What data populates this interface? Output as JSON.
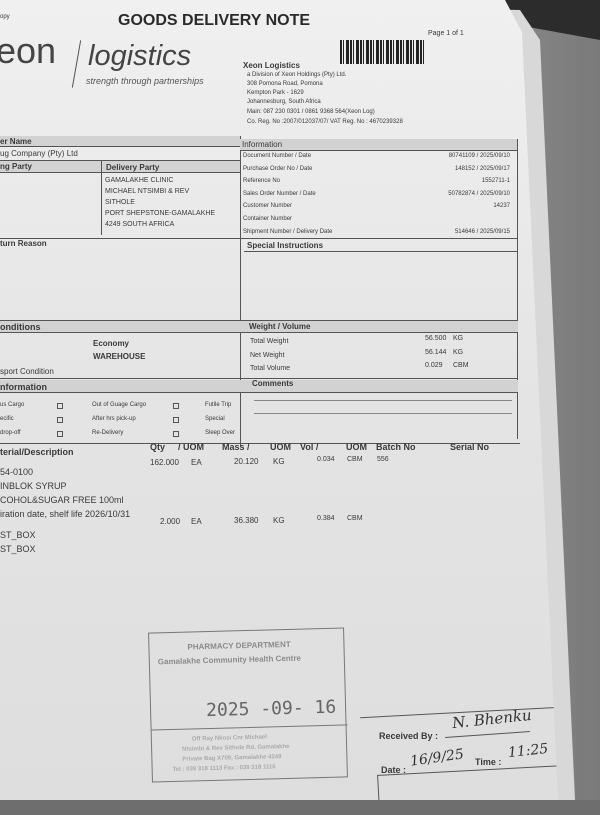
{
  "header": {
    "copy_label": "opy",
    "title": "GOODS DELIVERY NOTE",
    "page": "Page 1 of 1"
  },
  "logo": {
    "brand_left": "eon",
    "brand_right": "logistics",
    "tagline": "strength through partnerships"
  },
  "company": {
    "name": "Xeon Logistics",
    "lines": [
      "a Division of Xeon Holdings (Pty) Ltd.",
      "308 Pomona Road, Pomona",
      "Kempton Park - 1629",
      "Johannesburg, South Africa",
      "Main: 087 230 0301 / 0861 9368 564(Xeon Log)",
      "Co. Reg. No :2007/012037/07/ VAT Reg. No : 4670239328"
    ]
  },
  "customer": {
    "name_label": "er Name",
    "name": "ug Company (Pty) Ltd",
    "party_label": "ng Party",
    "delivery_label": "Delivery Party",
    "delivery_lines": [
      "GAMALAKHE CLINIC",
      "MICHAEL NTSIMBI & REV",
      "SITHOLE",
      "PORT SHEPSTONE-GAMALAKHE",
      "4249 SOUTH AFRICA"
    ]
  },
  "information": {
    "title": "Information",
    "rows": [
      {
        "label": "Document Number /  Date",
        "value": "80741109 / 2025/09/10"
      },
      {
        "label": "Purchase Order No / Date",
        "value": "148152 / 2025/09/17"
      },
      {
        "label": "Reference No",
        "value": "1552711-1"
      },
      {
        "label": "Sales Order Number /  Date",
        "value": "50782874 / 2025/09/10"
      },
      {
        "label": "Customer Number",
        "value": "14237"
      },
      {
        "label": "Container Number",
        "value": ""
      },
      {
        "label": "Shipment Number /  Delivery Date",
        "value": "514646 / 2025/09/15"
      }
    ]
  },
  "return_reason_label": "turn Reason",
  "special_instructions_label": "Special Instructions",
  "conditions": {
    "label": "onditions",
    "service": "Economy",
    "location": "WAREHOUSE",
    "transport_label": "sport Condition"
  },
  "weight": {
    "title": "Weight / Volume",
    "rows": [
      {
        "label": "Total Weight",
        "value": "56.500",
        "unit": "KG"
      },
      {
        "label": "Net Weight",
        "value": "56.144",
        "unit": "KG"
      },
      {
        "label": "Total Volume",
        "value": "0.029",
        "unit": "CBM"
      }
    ]
  },
  "extra": {
    "label": "nformation",
    "col1": [
      "us Cargo",
      "ecific",
      "drop-off"
    ],
    "col2": [
      "Out of Guage Cargo",
      "After hrs pick-up",
      "Re-Delivery"
    ],
    "col3": [
      "Futile Trip",
      "Special",
      "Sleep Over"
    ]
  },
  "comments_label": "Comments",
  "items": {
    "headers": {
      "desc": "terial/Description",
      "qty": "Qty",
      "uom1": "/ UOM",
      "mass": "Mass /",
      "uom2": "UOM",
      "vol": "Vol /",
      "uom3": "UOM",
      "batch": "Batch No",
      "serial": "Serial No"
    },
    "rows": [
      {
        "qty": "162.000",
        "uom": "EA",
        "mass": "20.120",
        "mass_uom": "KG",
        "vol": "0.034",
        "vol_uom": "CBM",
        "batch": "556",
        "desc": [
          "54-0100",
          "INBLOK SYRUP",
          "COHOL&SUGAR FREE 100ml",
          "iration date, shelf life 2026/10/31"
        ]
      },
      {
        "qty": "2.000",
        "uom": "EA",
        "mass": "36.380",
        "mass_uom": "KG",
        "vol": "0.384",
        "vol_uom": "CBM",
        "batch": "",
        "desc": [
          "ST_BOX",
          "ST_BOX"
        ]
      }
    ]
  },
  "stamp": {
    "dept": "PHARMACY DEPARTMENT",
    "centre": "Gamalakhe Community Health Centre",
    "date": "2025 -09- 16",
    "lines": [
      "Off Ray Nkosi      Cnr Michael",
      "Ntsimbi & Rev Sithole Rd, Gamalakhe",
      "Private Bag X709, Gamalakhe 4249",
      "Tel : 039 318 1113 Fax : 039 318 1116"
    ]
  },
  "receipt": {
    "received_label": "Received By :",
    "received_sig": "N. Bhenku",
    "date_label": "Date :",
    "date_value": "16/9/25",
    "time_label": "Time :",
    "time_value": "11:25"
  }
}
